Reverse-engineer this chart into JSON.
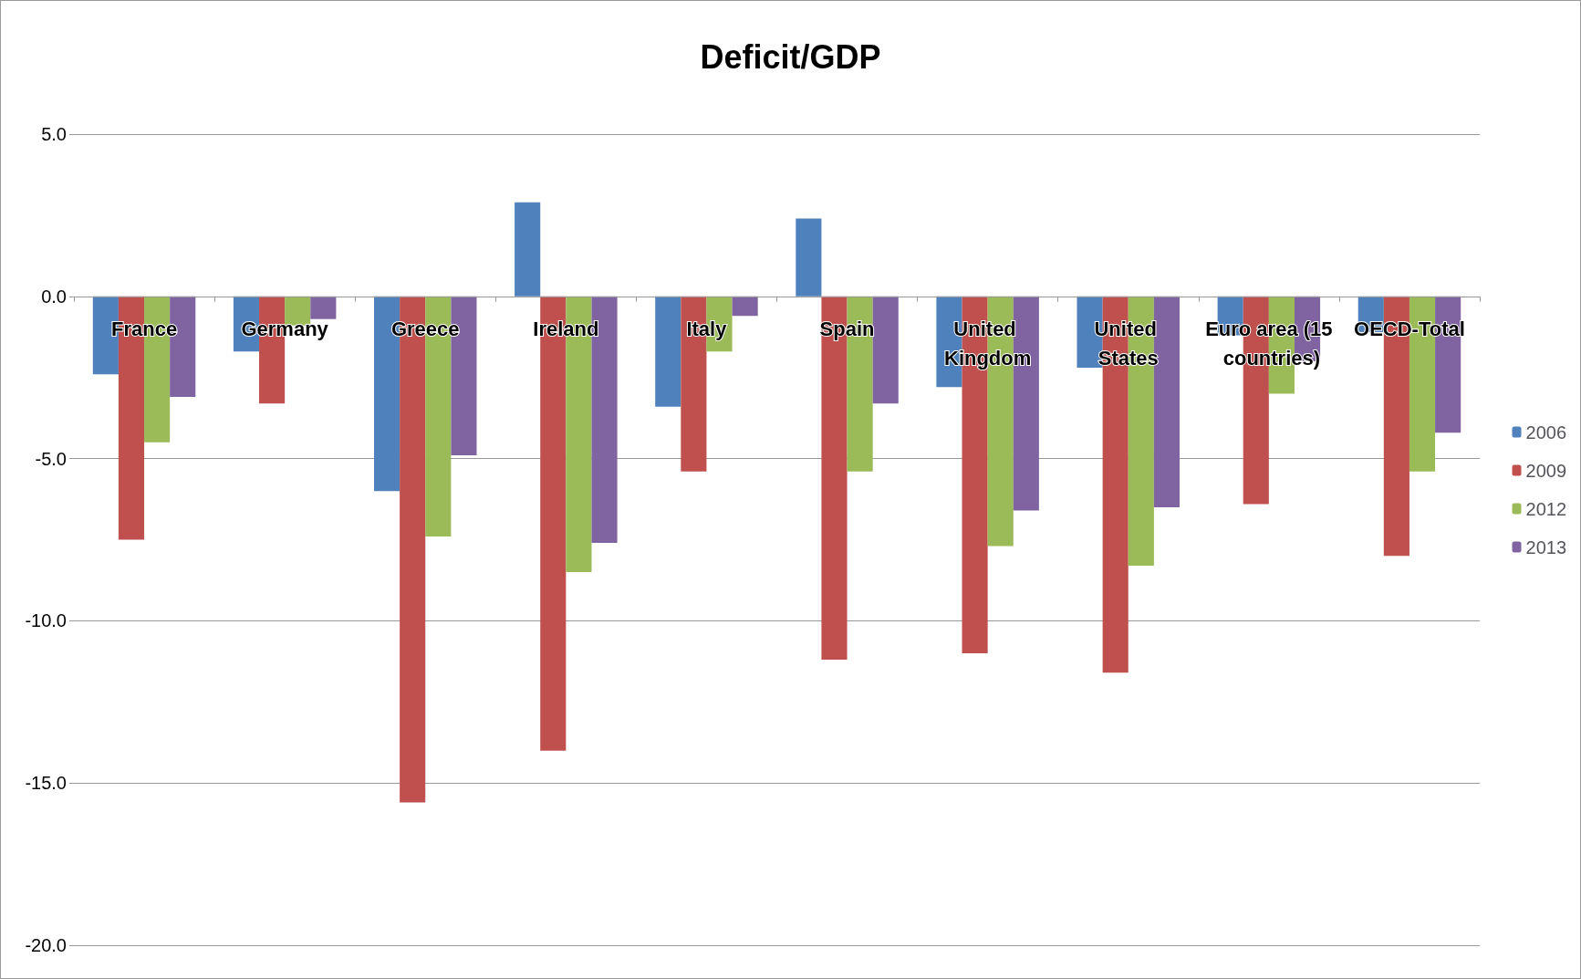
{
  "chart_data": {
    "type": "bar",
    "title": "Deficit/GDP",
    "categories": [
      "France",
      "Germany",
      "Greece",
      "Ireland",
      "Italy",
      "Spain",
      "United Kingdom",
      "United States",
      "Euro area (15 countries)",
      "OECD-Total"
    ],
    "series": [
      {
        "name": "2006",
        "color": "#4f81bd",
        "values": [
          -2.4,
          -1.7,
          -6.0,
          2.9,
          -3.4,
          2.4,
          -2.8,
          -2.2,
          -1.2,
          -1.1
        ]
      },
      {
        "name": "2009",
        "color": "#c0504d",
        "values": [
          -7.5,
          -3.3,
          -15.6,
          -14.0,
          -5.4,
          -11.2,
          -11.0,
          -11.6,
          -6.4,
          -8.0
        ]
      },
      {
        "name": "2012",
        "color": "#9bbb59",
        "values": [
          -4.5,
          -0.9,
          -7.4,
          -8.5,
          -1.7,
          -5.4,
          -7.7,
          -8.3,
          -3.0,
          -5.4
        ]
      },
      {
        "name": "2013",
        "color": "#8064a2",
        "values": [
          -3.1,
          -0.7,
          -4.9,
          -7.6,
          -0.6,
          -3.3,
          -6.6,
          -6.5,
          -2.0,
          -4.2
        ]
      }
    ],
    "ylim": [
      -20,
      5
    ],
    "yticks": [
      {
        "value": -20,
        "label": "-20.0"
      },
      {
        "value": -15,
        "label": "-15.0"
      },
      {
        "value": -10,
        "label": "-10.0"
      },
      {
        "value": -5,
        "label": "-5.0"
      },
      {
        "value": 0,
        "label": "0.0"
      },
      {
        "value": 5,
        "label": "5.0"
      }
    ],
    "grid": "y",
    "legend": "right"
  }
}
